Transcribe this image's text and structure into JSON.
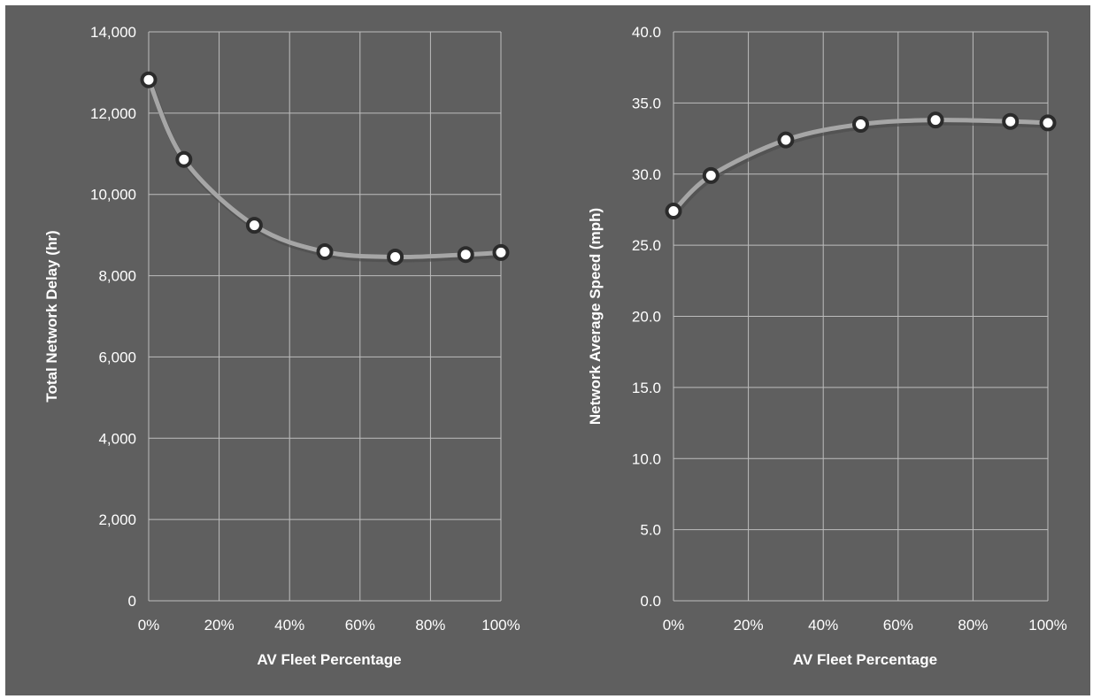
{
  "chart_data": [
    {
      "type": "line",
      "smooth": true,
      "title": "",
      "xlabel": "AV Fleet Percentage",
      "ylabel": "Total Network Delay (hr)",
      "x": [
        0,
        10,
        30,
        50,
        70,
        90,
        100
      ],
      "xlim": [
        0,
        100
      ],
      "xticks": [
        0,
        20,
        40,
        60,
        80,
        100
      ],
      "xtick_labels": [
        "0%",
        "20%",
        "40%",
        "60%",
        "80%",
        "100%"
      ],
      "ylim": [
        0,
        14000
      ],
      "yticks": [
        0,
        2000,
        4000,
        6000,
        8000,
        10000,
        12000,
        14000
      ],
      "ytick_labels": [
        "0",
        "2,000",
        "4,000",
        "6,000",
        "8,000",
        "10,000",
        "12,000",
        "14,000"
      ],
      "series": [
        {
          "values": [
            12820,
            10860,
            9240,
            8590,
            8460,
            8520,
            8570
          ]
        }
      ],
      "grid": true,
      "legend": "none"
    },
    {
      "type": "line",
      "smooth": true,
      "title": "",
      "xlabel": "AV Fleet Percentage",
      "ylabel": "Network Average Speed (mph)",
      "x": [
        0,
        10,
        30,
        50,
        70,
        90,
        100
      ],
      "xlim": [
        0,
        100
      ],
      "xticks": [
        0,
        20,
        40,
        60,
        80,
        100
      ],
      "xtick_labels": [
        "0%",
        "20%",
        "40%",
        "60%",
        "80%",
        "100%"
      ],
      "ylim": [
        0,
        40
      ],
      "yticks": [
        0,
        5,
        10,
        15,
        20,
        25,
        30,
        35,
        40
      ],
      "ytick_labels": [
        "0.0",
        "5.0",
        "10.0",
        "15.0",
        "20.0",
        "25.0",
        "30.0",
        "35.0",
        "40.0"
      ],
      "series": [
        {
          "values": [
            27.4,
            29.9,
            32.4,
            33.5,
            33.8,
            33.7,
            33.6
          ]
        }
      ],
      "grid": true,
      "legend": "none"
    }
  ],
  "colors": {
    "background": "#5f5f5f",
    "grid": "#bdbdbd",
    "text": "#ffffff",
    "line": "#a6a6a6",
    "marker_fill": "#ffffff",
    "marker_stroke": "#2b2b2b"
  }
}
